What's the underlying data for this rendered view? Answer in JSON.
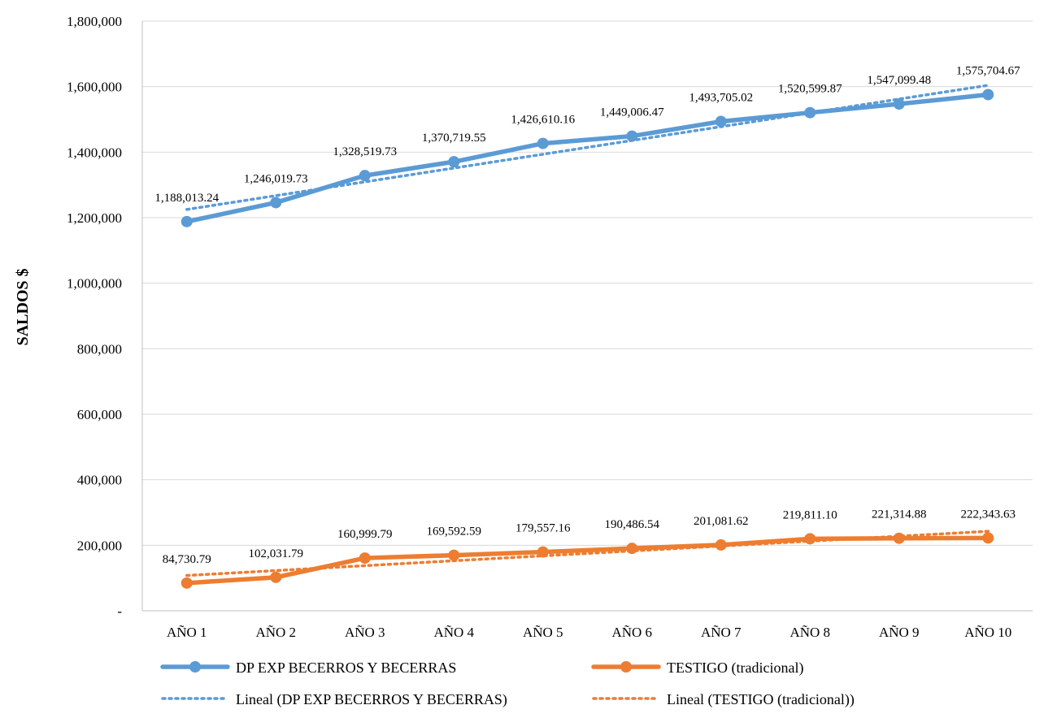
{
  "chart_data": {
    "type": "line",
    "ylabel": "SALDOS $",
    "ylim": [
      0,
      1800000
    ],
    "yticks": [
      {
        "value": 0,
        "label": "-"
      },
      {
        "value": 200000,
        "label": "200,000"
      },
      {
        "value": 400000,
        "label": "400,000"
      },
      {
        "value": 600000,
        "label": "600,000"
      },
      {
        "value": 800000,
        "label": "800,000"
      },
      {
        "value": 1000000,
        "label": "1,000,000"
      },
      {
        "value": 1200000,
        "label": "1,200,000"
      },
      {
        "value": 1400000,
        "label": "1,400,000"
      },
      {
        "value": 1600000,
        "label": "1,600,000"
      },
      {
        "value": 1800000,
        "label": "1,800,000"
      }
    ],
    "grid": "horizontal",
    "legend_position": "bottom",
    "categories": [
      "AÑO 1",
      "AÑO 2",
      "AÑO 3",
      "AÑO 4",
      "AÑO 5",
      "AÑO 6",
      "AÑO 7",
      "AÑO 8",
      "AÑO 9",
      "AÑO 10"
    ],
    "series": [
      {
        "name": "DP EXP BECERROS Y BECERRAS",
        "color": "#5b9bd5",
        "values": [
          1188013.24,
          1246019.73,
          1328519.73,
          1370719.55,
          1426610.16,
          1449006.47,
          1493705.02,
          1520599.87,
          1547099.48,
          1575704.67
        ],
        "labels": [
          "1,188,013.24",
          "1,246,019.73",
          "1,328,519.73",
          "1,370,719.55",
          "1,426,610.16",
          "1,449,006.47",
          "1,493,705.02",
          "1,520,599.87",
          "1,547,099.48",
          "1,575,704.67"
        ],
        "trendline_name": "Lineal (DP EXP BECERROS Y BECERRAS)"
      },
      {
        "name": "TESTIGO (tradicional)",
        "color": "#ed7d31",
        "values": [
          84730.79,
          102031.79,
          160999.79,
          169592.59,
          179557.16,
          190486.54,
          201081.62,
          219811.1,
          221314.88,
          222343.63
        ],
        "labels": [
          "84,730.79",
          "102,031.79",
          "160,999.79",
          "169,592.59",
          "179,557.16",
          "190,486.54",
          "201,081.62",
          "219,811.10",
          "221,314.88",
          "222,343.63"
        ],
        "trendline_name": "Lineal (TESTIGO (tradicional))"
      }
    ]
  }
}
